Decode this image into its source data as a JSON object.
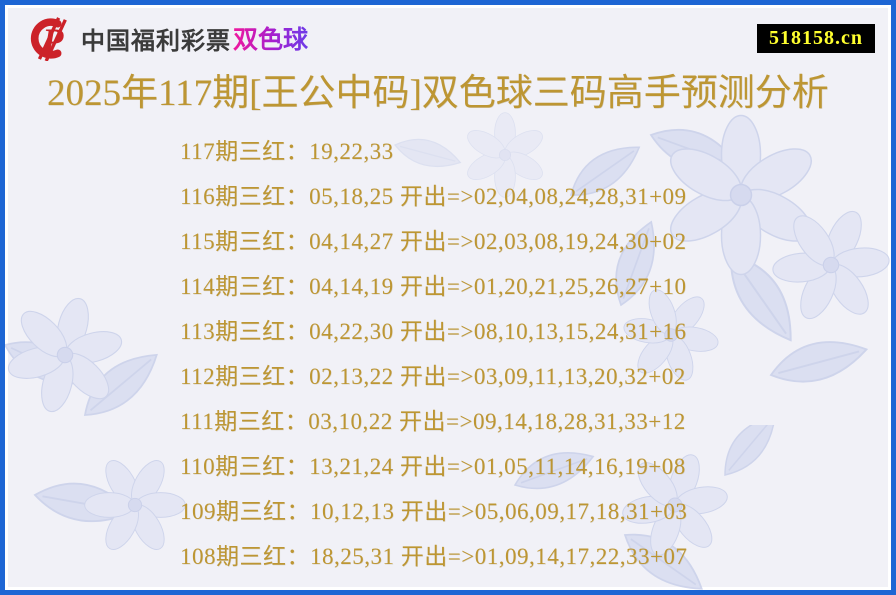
{
  "header": {
    "brand": "中国福利彩票",
    "product": "双色球",
    "logo_icon": "china-welfare-lottery-cp-icon",
    "brand_color": "#3b3b3b",
    "product_gradient": [
      "#f0189d",
      "#6d3ce8"
    ],
    "logo_red": "#cc2229"
  },
  "watermark": {
    "text": "518158.cn",
    "background": "#000000",
    "color": "#ffff2e"
  },
  "title": {
    "text": "2025年117期[王公中码]双色球三码高手预测分析",
    "color": "#bd9633"
  },
  "predictions": [
    {
      "text": "117期三红：19,22,33"
    },
    {
      "text": "116期三红：05,18,25 开出=>02,04,08,24,28,31+09"
    },
    {
      "text": "115期三红：04,14,27 开出=>02,03,08,19,24,30+02"
    },
    {
      "text": "114期三红：04,14,19 开出=>01,20,21,25,26,27+10"
    },
    {
      "text": "113期三红：04,22,30 开出=>08,10,13,15,24,31+16"
    },
    {
      "text": "112期三红：02,13,22 开出=>03,09,11,13,20,32+02"
    },
    {
      "text": "111期三红：03,10,22 开出=>09,14,18,28,31,33+12"
    },
    {
      "text": "110期三红：13,21,24 开出=>01,05,11,14,16,19+08"
    },
    {
      "text": "109期三红：10,12,13 开出=>05,06,09,17,18,31+03"
    },
    {
      "text": "108期三红：18,25,31 开出=>01,09,14,17,22,33+07"
    }
  ],
  "colors": {
    "border_blue": "#1e66d4",
    "background": "#f1f1f7",
    "gold_text": "#bd9633",
    "floral_watermark": "#dcdff1"
  }
}
